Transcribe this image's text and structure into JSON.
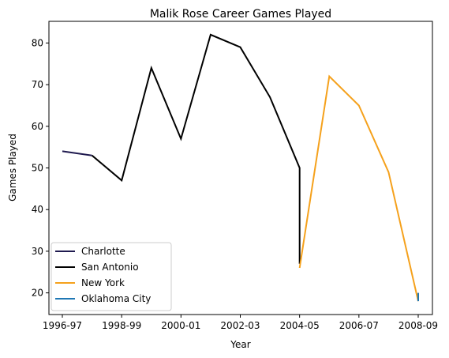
{
  "chart_data": {
    "type": "line",
    "title": "Malik Rose Career Games Played",
    "xlabel": "Year",
    "ylabel": "Games Played",
    "x_categories": [
      "1996-97",
      "1997-98",
      "1998-99",
      "1999-00",
      "2000-01",
      "2001-02",
      "2002-03",
      "2003-04",
      "2004-05",
      "2005-06",
      "2006-07",
      "2007-08",
      "2008-09"
    ],
    "x_tick_labels": [
      "1996-97",
      "1998-99",
      "2000-01",
      "2002-03",
      "2004-05",
      "2006-07",
      "2008-09"
    ],
    "y_ticks": [
      20,
      30,
      40,
      50,
      60,
      70,
      80
    ],
    "ylim": [
      14.8,
      85.2
    ],
    "grid": false,
    "legend_placement": "lower-left",
    "series": [
      {
        "name": "Charlotte",
        "color": "#1f1a4f",
        "points": [
          [
            "1996-97",
            54
          ],
          [
            "1997-98",
            53
          ]
        ]
      },
      {
        "name": "San Antonio",
        "color": "#000000",
        "points": [
          [
            "1997-98",
            53
          ],
          [
            "1998-99",
            47
          ],
          [
            "1999-00",
            74
          ],
          [
            "2000-01",
            57
          ],
          [
            "2001-02",
            82
          ],
          [
            "2002-03",
            79
          ],
          [
            "2003-04",
            67
          ],
          [
            "2004-05",
            50
          ],
          [
            "2004-05",
            27
          ]
        ]
      },
      {
        "name": "New York",
        "color": "#f5a11c",
        "points": [
          [
            "2004-05",
            26
          ],
          [
            "2005-06",
            72
          ],
          [
            "2006-07",
            65
          ],
          [
            "2007-08",
            49
          ],
          [
            "2008-09",
            18
          ]
        ]
      },
      {
        "name": "Oklahoma City",
        "color": "#1f77b4",
        "points": [
          [
            "2008-09",
            20
          ],
          [
            "2008-09",
            18
          ]
        ]
      }
    ]
  }
}
